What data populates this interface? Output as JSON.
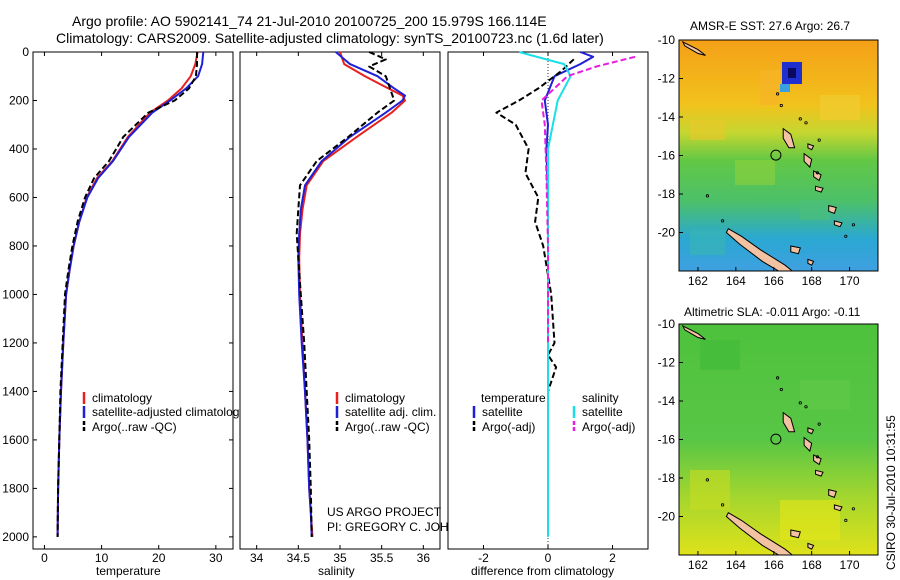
{
  "header": {
    "title_line1": "Argo profile: AO 5902141_74 21-Jul-2010 20100725_200 15.979S 166.114E",
    "title_line2": "Climatology: CARS2009. Satellite-adjusted climatology: synTS_20100723.nc (1.6d later)"
  },
  "credits": {
    "project": "US ARGO PROJECT",
    "pi": "PI: GREGORY C. JOHNSON",
    "timestamp": "CSIRO 30-Jul-2010 10:31:55"
  },
  "colors": {
    "climatology": "#e8201e",
    "satellite": "#1f1fd8",
    "argo": "#000000",
    "sal_satellite": "#18e0e6",
    "sal_argo": "#e61ee0"
  },
  "chart_data": [
    {
      "type": "line",
      "id": "temperature",
      "xlabel": "temperature",
      "xlim": [
        -2,
        33
      ],
      "ylim": [
        2050,
        0
      ],
      "xticks": [
        0,
        10,
        20,
        30
      ],
      "yticks": [
        0,
        200,
        400,
        600,
        800,
        1000,
        1200,
        1400,
        1600,
        1800,
        2000
      ],
      "legend": [
        "climatology",
        "satellite-adjusted climatology",
        "Argo(..raw -QC)"
      ],
      "series": [
        {
          "name": "climatology",
          "color": "#e8201e",
          "dash": "",
          "x": [
            26.8,
            26.4,
            25.6,
            24.0,
            21.6,
            18.5,
            14.6,
            11.9,
            9.2,
            7.4,
            6.1,
            5.1,
            4.4,
            3.8,
            3.3,
            2.9,
            2.6,
            2.4,
            2.3
          ],
          "depth": [
            0,
            50,
            100,
            150,
            200,
            250,
            350,
            450,
            520,
            600,
            700,
            800,
            900,
            1000,
            1200,
            1400,
            1600,
            1800,
            2000
          ]
        },
        {
          "name": "satellite",
          "color": "#1f1fd8",
          "dash": "",
          "x": [
            27.8,
            27.6,
            26.9,
            24.8,
            22.0,
            18.9,
            14.8,
            12.0,
            9.4,
            7.5,
            6.1,
            5.1,
            4.4,
            3.8,
            3.3,
            2.9,
            2.6,
            2.4,
            2.3
          ],
          "depth": [
            0,
            50,
            100,
            150,
            200,
            250,
            350,
            450,
            520,
            600,
            700,
            800,
            900,
            1000,
            1200,
            1400,
            1600,
            1800,
            2000
          ]
        },
        {
          "name": "argo",
          "color": "#000000",
          "dash": "6,3",
          "x": [
            26.7,
            26.7,
            26.5,
            25.3,
            22.8,
            18.2,
            13.8,
            11.3,
            8.7,
            7.1,
            5.8,
            4.9,
            4.2,
            3.6,
            3.2,
            2.8,
            2.6,
            2.4,
            2.3
          ],
          "depth": [
            0,
            50,
            100,
            150,
            200,
            250,
            350,
            450,
            520,
            600,
            700,
            800,
            900,
            1000,
            1200,
            1400,
            1600,
            1800,
            2000
          ]
        }
      ]
    },
    {
      "type": "line",
      "id": "salinity",
      "xlabel": "salinity",
      "xlim": [
        33.8,
        36.2
      ],
      "ylim": [
        2050,
        0
      ],
      "xticks": [
        34,
        34.5,
        35,
        35.5,
        36
      ],
      "legend": [
        "climatology",
        "satellite adj. clim.",
        "Argo(..raw -QC)"
      ],
      "series": [
        {
          "name": "climatology",
          "color": "#e8201e",
          "dash": "",
          "x": [
            35.0,
            35.05,
            35.3,
            35.58,
            35.75,
            35.78,
            35.62,
            35.2,
            34.8,
            34.6,
            34.55,
            34.52,
            34.51,
            34.52,
            34.55,
            34.58,
            34.61,
            34.63,
            34.65,
            34.67
          ],
          "depth": [
            0,
            50,
            100,
            150,
            180,
            200,
            250,
            350,
            450,
            550,
            650,
            750,
            850,
            1000,
            1200,
            1400,
            1600,
            1800,
            1900,
            2000
          ]
        },
        {
          "name": "satellite",
          "color": "#1f1fd8",
          "dash": "",
          "x": [
            34.95,
            35.12,
            35.45,
            35.65,
            35.78,
            35.75,
            35.55,
            35.12,
            34.78,
            34.58,
            34.53,
            34.51,
            34.5,
            34.51,
            34.54,
            34.58,
            34.61,
            34.63,
            34.65,
            34.66
          ],
          "depth": [
            0,
            50,
            100,
            150,
            180,
            200,
            250,
            350,
            450,
            550,
            650,
            750,
            850,
            1000,
            1200,
            1400,
            1600,
            1800,
            1900,
            2000
          ]
        },
        {
          "name": "argo",
          "color": "#000000",
          "dash": "6,3",
          "x": [
            35.35,
            35.55,
            35.35,
            35.55,
            35.6,
            35.65,
            35.45,
            35.1,
            34.72,
            34.52,
            34.5,
            34.48,
            34.5,
            34.53,
            34.57,
            34.6,
            34.63,
            34.65,
            34.66
          ],
          "depth": [
            0,
            30,
            60,
            100,
            150,
            200,
            250,
            350,
            450,
            550,
            650,
            750,
            850,
            1000,
            1200,
            1400,
            1600,
            1800,
            2000
          ]
        }
      ]
    },
    {
      "type": "line",
      "id": "difference",
      "xlabel": "difference from climatology",
      "xlim": [
        -3.1,
        3.1
      ],
      "ylim": [
        2050,
        0
      ],
      "xticks": [
        -2,
        0,
        2
      ],
      "legend_temperature": [
        "temperature",
        "satellite",
        "Argo(-adj)"
      ],
      "legend_salinity": [
        "salinity",
        "satellite",
        "Argo(-adj)"
      ],
      "series": [
        {
          "name": "temperature satellite",
          "color": "#1f1fd8",
          "dash": "",
          "x": [
            1.0,
            1.4,
            1.0,
            0.2,
            -0.1,
            0.0,
            -0.05,
            0.0,
            0.0,
            0.0
          ],
          "depth": [
            0,
            20,
            50,
            100,
            200,
            300,
            400,
            600,
            1000,
            1400
          ]
        },
        {
          "name": "temperature argo",
          "color": "#000000",
          "dash": "6,3",
          "x": [
            0.8,
            0.4,
            -0.3,
            -0.9,
            -1.6,
            -1.0,
            -0.6,
            -0.7,
            -0.3,
            -0.4,
            -0.15,
            0.1,
            0.2,
            0.0,
            0.25,
            0.0
          ],
          "depth": [
            30,
            80,
            150,
            200,
            250,
            300,
            400,
            500,
            600,
            700,
            800,
            1000,
            1200,
            1250,
            1300,
            1400
          ]
        },
        {
          "name": "salinity satellite",
          "color": "#18e0e6",
          "dash": "",
          "x": [
            -0.9,
            0.5,
            0.7,
            0.3,
            0.0,
            0.0,
            0.0
          ],
          "depth": [
            0,
            50,
            100,
            200,
            400,
            1000,
            2000
          ]
        },
        {
          "name": "salinity argo",
          "color": "#e61ee0",
          "dash": "6,3",
          "x": [
            2.7,
            1.5,
            0.6,
            -0.2,
            -0.1,
            -0.05,
            0.0,
            0.0
          ],
          "depth": [
            20,
            60,
            100,
            200,
            300,
            500,
            800,
            1200
          ]
        }
      ]
    },
    {
      "type": "heatmap",
      "id": "sst_map",
      "title": "AMSR-E SST: 27.6  Argo: 26.7",
      "xlim": [
        161,
        171.5
      ],
      "ylim": [
        -22,
        -10
      ],
      "xticks": [
        162,
        164,
        166,
        168,
        170
      ],
      "yticks": [
        -10,
        -12,
        -14,
        -16,
        -18,
        -20
      ],
      "argo_position": [
        166.114,
        -15.979
      ]
    },
    {
      "type": "heatmap",
      "id": "sla_map",
      "title": "Altimetric SLA: -0.011  Argo: -0.11",
      "xlim": [
        161,
        171.5
      ],
      "ylim": [
        -22,
        -10
      ],
      "xticks": [
        162,
        164,
        166,
        168,
        170
      ],
      "yticks": [
        -10,
        -12,
        -14,
        -16,
        -18,
        -20
      ],
      "argo_position": [
        166.114,
        -15.979
      ]
    }
  ]
}
